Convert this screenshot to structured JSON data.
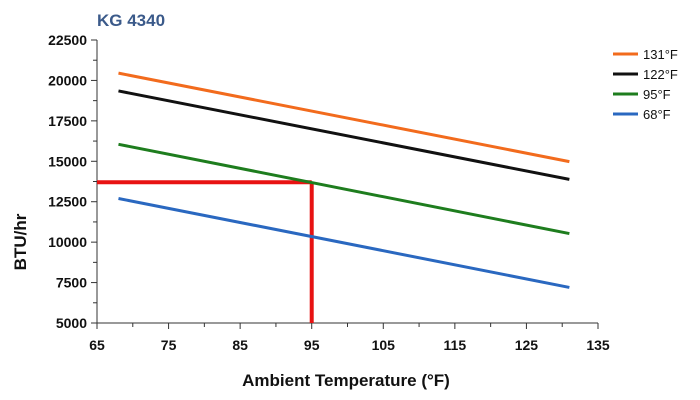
{
  "chart_data": {
    "type": "line",
    "title": "KG 4340",
    "xlabel": "Ambient Temperature (°F)",
    "ylabel": "BTU/hr",
    "xlim": [
      65,
      135
    ],
    "ylim": [
      5000,
      22500
    ],
    "x_ticks": [
      65,
      75,
      85,
      95,
      105,
      115,
      125,
      135
    ],
    "y_ticks": [
      5000,
      7500,
      10000,
      12500,
      15000,
      17500,
      20000,
      22500
    ],
    "x_tick_labels": [
      "65",
      "75",
      "85",
      "95",
      "105",
      "115",
      "125",
      "135"
    ],
    "y_tick_labels": [
      "5000",
      "7500",
      "10000",
      "12500",
      "15000",
      "17500",
      "20000",
      "22500"
    ],
    "grid": false,
    "legend_position": "top-right",
    "series": [
      {
        "name": "131°F",
        "color": "#f26b1d",
        "x": [
          68,
          131
        ],
        "y": [
          20450,
          14980
        ]
      },
      {
        "name": "122°F",
        "color": "#111111",
        "x": [
          68,
          131
        ],
        "y": [
          19350,
          13880
        ]
      },
      {
        "name": "95°F",
        "color": "#1e7d1e",
        "x": [
          68,
          131
        ],
        "y": [
          16050,
          10530
        ]
      },
      {
        "name": "68°F",
        "color": "#2a68c0",
        "x": [
          68,
          131
        ],
        "y": [
          12700,
          7200
        ]
      }
    ],
    "reference_lines": {
      "color": "#e81212",
      "horizontal": {
        "y": 13700,
        "x_from": 65,
        "x_to": 95
      },
      "vertical": {
        "x": 95,
        "y_from": 5000,
        "y_to": 13700
      }
    }
  },
  "colors": {
    "title": "#3b5a8a",
    "axis": "#333333"
  }
}
